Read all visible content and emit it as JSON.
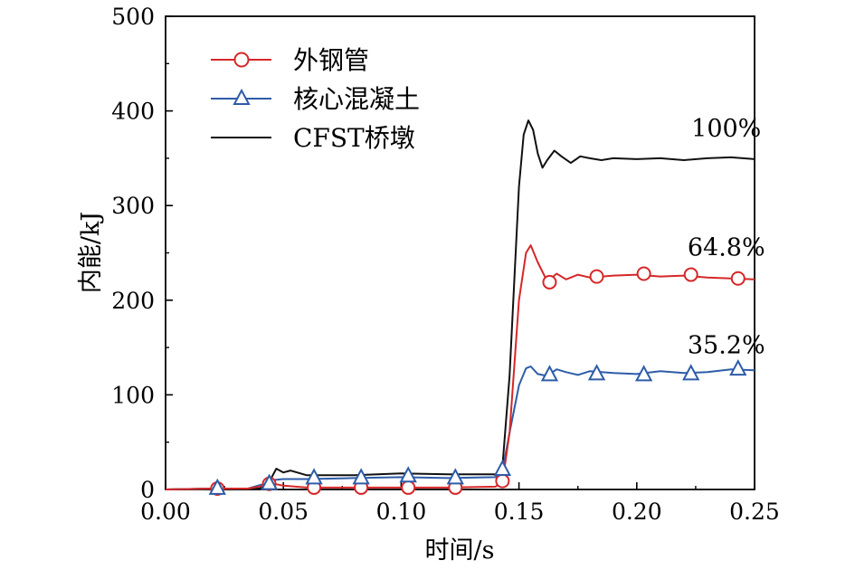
{
  "chart_data": {
    "type": "line",
    "xlabel": "时间/s",
    "ylabel": "内能/kJ",
    "xlim": [
      0.0,
      0.25
    ],
    "ylim": [
      0,
      500
    ],
    "xticks": [
      0.0,
      0.05,
      0.1,
      0.15,
      0.2,
      0.25
    ],
    "xtick_labels": [
      "0.00",
      "0.05",
      "0.10",
      "0.15",
      "0.20",
      "0.25"
    ],
    "yticks": [
      0,
      100,
      200,
      300,
      400,
      500
    ],
    "ytick_labels": [
      "0",
      "100",
      "200",
      "300",
      "400",
      "500"
    ],
    "grid": false,
    "legend_position": "top-left",
    "series": [
      {
        "name": "外钢管",
        "color": "#d62728",
        "marker": "circle",
        "x": [
          0.0,
          0.02,
          0.035,
          0.042,
          0.046,
          0.05,
          0.06,
          0.08,
          0.1,
          0.12,
          0.14,
          0.143,
          0.146,
          0.15,
          0.153,
          0.155,
          0.158,
          0.162,
          0.166,
          0.17,
          0.175,
          0.18,
          0.19,
          0.2,
          0.21,
          0.22,
          0.23,
          0.24,
          0.25
        ],
        "y": [
          0,
          1,
          1,
          4,
          6,
          4,
          2,
          2,
          2,
          2,
          3,
          8,
          60,
          200,
          250,
          258,
          240,
          220,
          228,
          222,
          227,
          224,
          226,
          227,
          225,
          226,
          224,
          223,
          222
        ],
        "marker_x": [
          0.022,
          0.044,
          0.063,
          0.083,
          0.103,
          0.123,
          0.143,
          0.163,
          0.183,
          0.203,
          0.223,
          0.243
        ],
        "marker_y": [
          1,
          6,
          2,
          2,
          2,
          2,
          9,
          219,
          225,
          228,
          227,
          223
        ]
      },
      {
        "name": "核心混凝土",
        "color": "#2e5ca8",
        "marker": "triangle",
        "x": [
          0.0,
          0.02,
          0.035,
          0.042,
          0.046,
          0.05,
          0.06,
          0.08,
          0.1,
          0.12,
          0.14,
          0.143,
          0.146,
          0.15,
          0.153,
          0.155,
          0.158,
          0.162,
          0.166,
          0.17,
          0.175,
          0.18,
          0.19,
          0.2,
          0.21,
          0.22,
          0.23,
          0.24,
          0.25
        ],
        "y": [
          0,
          1,
          1,
          6,
          10,
          11,
          11,
          12,
          13,
          12,
          13,
          20,
          60,
          110,
          128,
          130,
          122,
          120,
          127,
          124,
          121,
          125,
          123,
          122,
          125,
          123,
          124,
          127,
          126
        ],
        "marker_x": [
          0.022,
          0.044,
          0.063,
          0.083,
          0.103,
          0.123,
          0.143,
          0.163,
          0.183,
          0.203,
          0.223,
          0.243
        ],
        "marker_y": [
          2,
          7,
          13,
          13,
          15,
          13,
          22,
          122,
          123,
          122,
          123,
          128
        ]
      },
      {
        "name": "CFST桥墩",
        "color": "#111111",
        "marker": "none",
        "x": [
          0.0,
          0.02,
          0.04,
          0.044,
          0.047,
          0.05,
          0.053,
          0.06,
          0.08,
          0.1,
          0.12,
          0.14,
          0.143,
          0.146,
          0.15,
          0.152,
          0.154,
          0.156,
          0.158,
          0.16,
          0.162,
          0.165,
          0.168,
          0.172,
          0.176,
          0.18,
          0.185,
          0.19,
          0.2,
          0.21,
          0.22,
          0.23,
          0.24,
          0.25
        ],
        "y": [
          0,
          1,
          1,
          8,
          22,
          18,
          20,
          15,
          15,
          17,
          16,
          16,
          25,
          120,
          320,
          375,
          390,
          380,
          355,
          340,
          348,
          358,
          352,
          345,
          352,
          350,
          348,
          350,
          349,
          350,
          348,
          350,
          351,
          349
        ]
      }
    ],
    "annotations": [
      {
        "text": "100%",
        "x": 0.238,
        "y": 373
      },
      {
        "text": "64.8%",
        "x": 0.238,
        "y": 247
      },
      {
        "text": "35.2%",
        "x": 0.238,
        "y": 144
      }
    ]
  }
}
